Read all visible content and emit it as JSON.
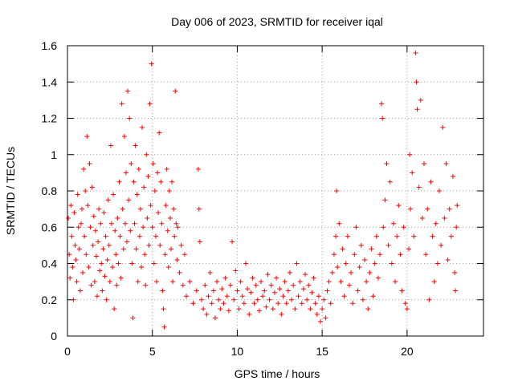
{
  "chart_data": {
    "type": "scatter",
    "title": "Day 006 of 2023, SRMTID for receiver iqal",
    "xlabel": "GPS time / hours",
    "ylabel": "SRMTID / TECUs",
    "xlim": [
      0,
      24.5
    ],
    "ylim": [
      0,
      1.6
    ],
    "xticks": [
      0,
      5,
      10,
      15,
      20
    ],
    "xtick_labels": [
      "0",
      "5",
      "10",
      "15",
      "20"
    ],
    "yticks": [
      0,
      0.2,
      0.4,
      0.6,
      0.8,
      1.0,
      1.2,
      1.4,
      1.6
    ],
    "ytick_labels": [
      "0",
      "0.2",
      "0.4",
      "0.6",
      "0.8",
      "1",
      "1.2",
      "1.4",
      "1.6"
    ],
    "grid": true,
    "marker": "+",
    "series": [
      {
        "name": "SRMTID",
        "color": "#ff0000",
        "points": [
          [
            0.05,
            0.65
          ],
          [
            0.1,
            0.45
          ],
          [
            0.15,
            0.32
          ],
          [
            0.2,
            0.72
          ],
          [
            0.25,
            0.55
          ],
          [
            0.3,
            0.38
          ],
          [
            0.35,
            0.2
          ],
          [
            0.4,
            0.68
          ],
          [
            0.45,
            0.5
          ],
          [
            0.5,
            0.42
          ],
          [
            0.55,
            0.3
          ],
          [
            0.6,
            0.78
          ],
          [
            0.65,
            0.6
          ],
          [
            0.7,
            0.48
          ],
          [
            0.75,
            0.25
          ],
          [
            0.8,
            0.62
          ],
          [
            0.85,
            0.7
          ],
          [
            0.9,
            0.35
          ],
          [
            0.95,
            0.92
          ],
          [
            1.0,
            0.55
          ],
          [
            1.05,
            0.8
          ],
          [
            1.1,
            0.45
          ],
          [
            1.15,
            1.1
          ],
          [
            1.2,
            0.72
          ],
          [
            1.25,
            0.38
          ],
          [
            1.3,
            0.95
          ],
          [
            1.35,
            0.6
          ],
          [
            1.4,
            0.28
          ],
          [
            1.45,
            0.82
          ],
          [
            1.5,
            0.5
          ],
          [
            1.55,
            0.66
          ],
          [
            1.6,
            0.3
          ],
          [
            1.65,
            0.58
          ],
          [
            1.7,
            0.44
          ],
          [
            1.75,
            0.22
          ],
          [
            1.8,
            0.52
          ],
          [
            1.85,
            0.7
          ],
          [
            1.9,
            0.36
          ],
          [
            1.95,
            0.62
          ],
          [
            2.0,
            0.4
          ],
          [
            2.05,
            0.25
          ],
          [
            2.1,
            0.48
          ],
          [
            2.15,
            0.68
          ],
          [
            2.2,
            0.33
          ],
          [
            2.25,
            0.55
          ],
          [
            2.3,
            0.2
          ],
          [
            2.35,
            0.42
          ],
          [
            2.4,
            0.75
          ],
          [
            2.45,
            0.5
          ],
          [
            2.5,
            0.3
          ],
          [
            2.55,
            1.05
          ],
          [
            2.6,
            0.62
          ],
          [
            2.65,
            0.38
          ],
          [
            2.7,
            0.78
          ],
          [
            2.75,
            0.15
          ],
          [
            2.8,
            0.58
          ],
          [
            2.85,
            0.45
          ],
          [
            2.9,
            0.28
          ],
          [
            2.95,
            0.65
          ],
          [
            3.0,
            0.4
          ],
          [
            3.05,
            0.85
          ],
          [
            3.1,
            0.55
          ],
          [
            3.15,
            0.32
          ],
          [
            3.2,
            1.28
          ],
          [
            3.25,
            0.7
          ],
          [
            3.3,
            0.48
          ],
          [
            3.35,
            1.1
          ],
          [
            3.4,
            0.62
          ],
          [
            3.45,
            0.9
          ],
          [
            3.5,
            0.52
          ],
          [
            3.55,
            1.35
          ],
          [
            3.6,
            0.75
          ],
          [
            3.65,
            1.2
          ],
          [
            3.7,
            0.58
          ],
          [
            3.75,
            0.95
          ],
          [
            3.8,
            0.4
          ],
          [
            3.85,
            0.1
          ],
          [
            3.9,
            0.85
          ],
          [
            3.95,
            0.62
          ],
          [
            4.0,
            1.05
          ],
          [
            4.05,
            0.48
          ],
          [
            4.1,
            0.78
          ],
          [
            4.15,
            0.3
          ],
          [
            4.2,
            0.92
          ],
          [
            4.25,
            0.55
          ],
          [
            4.3,
            0.7
          ],
          [
            4.35,
            0.38
          ],
          [
            4.4,
            1.15
          ],
          [
            4.45,
            0.6
          ],
          [
            4.5,
            0.82
          ],
          [
            4.55,
            0.45
          ],
          [
            4.6,
            0.28
          ],
          [
            4.65,
            1.0
          ],
          [
            4.7,
            0.65
          ],
          [
            4.75,
            0.88
          ],
          [
            4.8,
            0.5
          ],
          [
            4.85,
            1.28
          ],
          [
            4.9,
            0.72
          ],
          [
            4.95,
            1.5
          ],
          [
            5.0,
            0.6
          ],
          [
            5.05,
            0.95
          ],
          [
            5.1,
            0.4
          ],
          [
            5.15,
            0.8
          ],
          [
            5.2,
            0.55
          ],
          [
            5.25,
            0.3
          ],
          [
            5.3,
            0.9
          ],
          [
            5.35,
            0.68
          ],
          [
            5.4,
            1.12
          ],
          [
            5.45,
            0.5
          ],
          [
            5.5,
            0.85
          ],
          [
            5.55,
            0.62
          ],
          [
            5.6,
            0.25
          ],
          [
            5.65,
            0.15
          ],
          [
            5.7,
            0.05
          ],
          [
            5.75,
            0.45
          ],
          [
            5.8,
            0.72
          ],
          [
            5.85,
            0.92
          ],
          [
            5.9,
            0.58
          ],
          [
            5.95,
            0.38
          ],
          [
            6.0,
            0.8
          ],
          [
            6.05,
            0.65
          ],
          [
            6.1,
            0.48
          ],
          [
            6.15,
            0.85
          ],
          [
            6.2,
            0.3
          ],
          [
            6.25,
            0.7
          ],
          [
            6.3,
            0.55
          ],
          [
            6.35,
            1.35
          ],
          [
            6.4,
            0.62
          ],
          [
            6.45,
            0.42
          ],
          [
            6.5,
            0.6
          ],
          [
            6.6,
            0.35
          ],
          [
            6.7,
            0.5
          ],
          [
            6.8,
            0.28
          ],
          [
            6.9,
            0.45
          ],
          [
            7.0,
            0.22
          ],
          [
            7.2,
            0.3
          ],
          [
            7.4,
            0.18
          ],
          [
            7.6,
            0.25
          ],
          [
            7.7,
            0.92
          ],
          [
            7.75,
            0.7
          ],
          [
            7.8,
            0.52
          ],
          [
            7.9,
            0.2
          ],
          [
            8.0,
            0.15
          ],
          [
            8.1,
            0.28
          ],
          [
            8.2,
            0.12
          ],
          [
            8.3,
            0.22
          ],
          [
            8.4,
            0.35
          ],
          [
            8.5,
            0.18
          ],
          [
            8.6,
            0.25
          ],
          [
            8.7,
            0.1
          ],
          [
            8.8,
            0.3
          ],
          [
            8.9,
            0.2
          ],
          [
            9.0,
            0.15
          ],
          [
            9.1,
            0.26
          ],
          [
            9.2,
            0.18
          ],
          [
            9.3,
            0.32
          ],
          [
            9.4,
            0.22
          ],
          [
            9.5,
            0.14
          ],
          [
            9.6,
            0.28
          ],
          [
            9.7,
            0.52
          ],
          [
            9.8,
            0.2
          ],
          [
            9.9,
            0.36
          ],
          [
            10.0,
            0.25
          ],
          [
            10.1,
            0.15
          ],
          [
            10.2,
            0.3
          ],
          [
            10.3,
            0.22
          ],
          [
            10.4,
            0.18
          ],
          [
            10.5,
            0.4
          ],
          [
            10.6,
            0.26
          ],
          [
            10.7,
            0.12
          ],
          [
            10.8,
            0.24
          ],
          [
            10.9,
            0.32
          ],
          [
            11.0,
            0.18
          ],
          [
            11.1,
            0.28
          ],
          [
            11.2,
            0.2
          ],
          [
            11.3,
            0.14
          ],
          [
            11.4,
            0.3
          ],
          [
            11.5,
            0.22
          ],
          [
            11.6,
            0.25
          ],
          [
            11.7,
            0.16
          ],
          [
            11.8,
            0.34
          ],
          [
            11.9,
            0.2
          ],
          [
            12.0,
            0.28
          ],
          [
            12.1,
            0.15
          ],
          [
            12.2,
            0.24
          ],
          [
            12.3,
            0.32
          ],
          [
            12.4,
            0.18
          ],
          [
            12.5,
            0.26
          ],
          [
            12.6,
            0.12
          ],
          [
            12.7,
            0.22
          ],
          [
            12.8,
            0.3
          ],
          [
            12.9,
            0.18
          ],
          [
            13.0,
            0.25
          ],
          [
            13.1,
            0.35
          ],
          [
            13.2,
            0.2
          ],
          [
            13.3,
            0.28
          ],
          [
            13.4,
            0.15
          ],
          [
            13.5,
            0.4
          ],
          [
            13.6,
            0.22
          ],
          [
            13.7,
            0.3
          ],
          [
            13.8,
            0.18
          ],
          [
            13.9,
            0.26
          ],
          [
            14.0,
            0.34
          ],
          [
            14.1,
            0.2
          ],
          [
            14.2,
            0.28
          ],
          [
            14.3,
            0.15
          ],
          [
            14.4,
            0.24
          ],
          [
            14.5,
            0.32
          ],
          [
            14.6,
            0.18
          ],
          [
            14.7,
            0.12
          ],
          [
            14.8,
            0.22
          ],
          [
            14.9,
            0.08
          ],
          [
            15.0,
            0.15
          ],
          [
            15.1,
            0.2
          ],
          [
            15.2,
            0.1
          ],
          [
            15.3,
            0.25
          ],
          [
            15.4,
            0.3
          ],
          [
            15.5,
            0.18
          ],
          [
            15.6,
            0.35
          ],
          [
            15.7,
            0.45
          ],
          [
            15.8,
            0.55
          ],
          [
            15.85,
            0.8
          ],
          [
            15.9,
            0.38
          ],
          [
            16.0,
            0.62
          ],
          [
            16.1,
            0.3
          ],
          [
            16.2,
            0.48
          ],
          [
            16.3,
            0.22
          ],
          [
            16.4,
            0.4
          ],
          [
            16.5,
            0.55
          ],
          [
            16.6,
            0.28
          ],
          [
            16.7,
            0.35
          ],
          [
            16.8,
            0.18
          ],
          [
            16.9,
            0.45
          ],
          [
            17.0,
            0.6
          ],
          [
            17.1,
            0.25
          ],
          [
            17.2,
            0.38
          ],
          [
            17.3,
            0.5
          ],
          [
            17.4,
            0.2
          ],
          [
            17.5,
            0.42
          ],
          [
            17.6,
            0.3
          ],
          [
            17.7,
            0.15
          ],
          [
            17.8,
            0.35
          ],
          [
            17.9,
            0.48
          ],
          [
            18.0,
            0.22
          ],
          [
            18.1,
            0.4
          ],
          [
            18.2,
            0.55
          ],
          [
            18.3,
            0.32
          ],
          [
            18.4,
            0.45
          ],
          [
            18.5,
            1.28
          ],
          [
            18.55,
            1.2
          ],
          [
            18.6,
            0.6
          ],
          [
            18.7,
            0.75
          ],
          [
            18.8,
            0.95
          ],
          [
            18.9,
            0.5
          ],
          [
            19.0,
            0.85
          ],
          [
            19.1,
            0.4
          ],
          [
            19.2,
            0.62
          ],
          [
            19.3,
            0.3
          ],
          [
            19.4,
            0.55
          ],
          [
            19.5,
            0.72
          ],
          [
            19.6,
            0.45
          ],
          [
            19.7,
            0.25
          ],
          [
            19.8,
            0.6
          ],
          [
            19.9,
            0.18
          ],
          [
            20.0,
            0.15
          ],
          [
            20.1,
            0.48
          ],
          [
            20.15,
            1.0
          ],
          [
            20.2,
            0.7
          ],
          [
            20.3,
            0.9
          ],
          [
            20.4,
            0.55
          ],
          [
            20.5,
            1.56
          ],
          [
            20.55,
            1.4
          ],
          [
            20.6,
            1.25
          ],
          [
            20.7,
            0.82
          ],
          [
            20.8,
            1.3
          ],
          [
            20.9,
            0.65
          ],
          [
            21.0,
            0.95
          ],
          [
            21.1,
            0.45
          ],
          [
            21.2,
            0.7
          ],
          [
            21.3,
            0.2
          ],
          [
            21.4,
            0.85
          ],
          [
            21.5,
            0.55
          ],
          [
            21.6,
            0.3
          ],
          [
            21.7,
            0.62
          ],
          [
            21.8,
            0.4
          ],
          [
            21.9,
            0.8
          ],
          [
            22.0,
            0.5
          ],
          [
            22.1,
            1.15
          ],
          [
            22.2,
            0.65
          ],
          [
            22.3,
            0.95
          ],
          [
            22.4,
            0.42
          ],
          [
            22.5,
            0.7
          ],
          [
            22.6,
            0.55
          ],
          [
            22.7,
            0.88
          ],
          [
            22.8,
            0.35
          ],
          [
            22.85,
            0.25
          ],
          [
            22.9,
            0.6
          ],
          [
            22.95,
            0.72
          ]
        ]
      }
    ]
  }
}
